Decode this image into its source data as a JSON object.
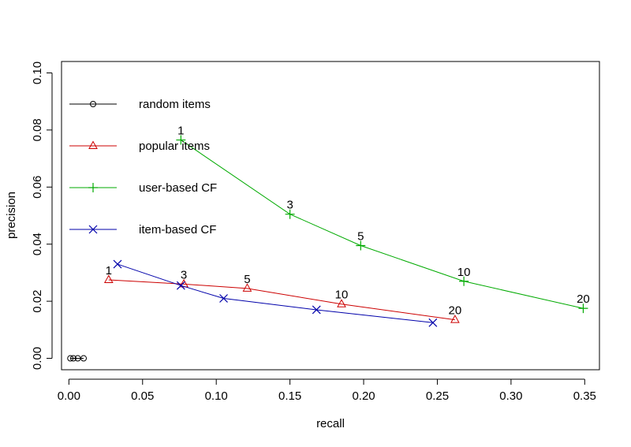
{
  "chart_data": {
    "type": "line",
    "title": "",
    "xlabel": "recall",
    "ylabel": "precision",
    "xlim": [
      -0.005,
      0.36
    ],
    "ylim": [
      -0.004,
      0.104
    ],
    "x_ticks": [
      "0.00",
      "0.05",
      "0.10",
      "0.15",
      "0.20",
      "0.25",
      "0.30",
      "0.35"
    ],
    "x_tick_values": [
      0.0,
      0.05,
      0.1,
      0.15,
      0.2,
      0.25,
      0.3,
      0.35
    ],
    "y_ticks": [
      "0.00",
      "0.02",
      "0.04",
      "0.06",
      "0.08",
      "0.10"
    ],
    "y_tick_values": [
      0.0,
      0.02,
      0.04,
      0.06,
      0.08,
      0.1
    ],
    "grid": false,
    "legend_position": "top-left",
    "series": [
      {
        "name": "random items",
        "color": "#000000",
        "marker": "circle",
        "x": [
          0.001,
          0.003,
          0.006,
          0.01
        ],
        "y": [
          0.0,
          0.0,
          0.0,
          0.0
        ],
        "point_labels": []
      },
      {
        "name": "popular items",
        "color": "#cc0000",
        "marker": "triangle",
        "x": [
          0.027,
          0.078,
          0.121,
          0.185,
          0.262
        ],
        "y": [
          0.0275,
          0.026,
          0.0245,
          0.019,
          0.0135
        ],
        "point_labels": [
          "1",
          "3",
          "5",
          "10",
          "20"
        ]
      },
      {
        "name": "user-based CF",
        "color": "#00aa00",
        "marker": "plus",
        "x": [
          0.076,
          0.15,
          0.198,
          0.268,
          0.349
        ],
        "y": [
          0.0765,
          0.0505,
          0.0395,
          0.027,
          0.0175
        ],
        "point_labels": [
          "1",
          "3",
          "5",
          "10",
          "20"
        ]
      },
      {
        "name": "item-based CF",
        "color": "#0000aa",
        "marker": "x",
        "x": [
          0.033,
          0.076,
          0.105,
          0.168,
          0.247
        ],
        "y": [
          0.033,
          0.0255,
          0.021,
          0.017,
          0.0125
        ],
        "point_labels": []
      }
    ]
  }
}
